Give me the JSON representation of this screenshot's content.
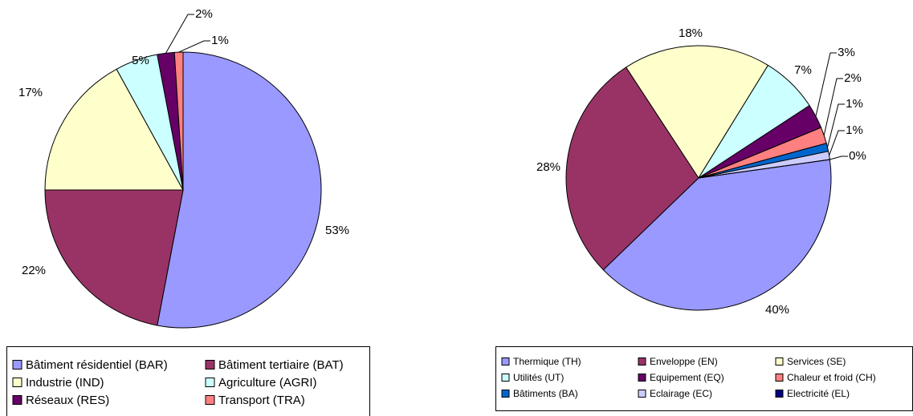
{
  "chart_data": [
    {
      "type": "pie",
      "categories": [
        "Bâtiment résidentiel (BAR)",
        "Bâtiment tertiaire (BAT)",
        "Industrie (IND)",
        "Agriculture (AGRI)",
        "Réseaux (RES)",
        "Transport (TRA)"
      ],
      "values": [
        53,
        22,
        17,
        5,
        2,
        1
      ],
      "value_labels": [
        "53%",
        "22%",
        "17%",
        "5%",
        "2%",
        "1%"
      ],
      "colors": [
        "#9999ff",
        "#993366",
        "#ffffcc",
        "#ccffff",
        "#660066",
        "#ff8080"
      ]
    },
    {
      "type": "pie",
      "categories": [
        "Thermique (TH)",
        "Enveloppe (EN)",
        "Services (SE)",
        "Utilités (UT)",
        "Equipement (EQ)",
        "Chaleur et froid (CH)",
        "Bâtiments (BA)",
        "Eclairage (EC)",
        "Electricité (EL)"
      ],
      "values": [
        40,
        28,
        18,
        7,
        3,
        2,
        1,
        1,
        0
      ],
      "value_labels": [
        "40%",
        "28%",
        "18%",
        "7%",
        "3%",
        "2%",
        "1%",
        "1%",
        "0%"
      ],
      "colors": [
        "#9999ff",
        "#993366",
        "#ffffcc",
        "#ccffff",
        "#660066",
        "#ff8080",
        "#0066cc",
        "#ccccff",
        "#000080"
      ]
    }
  ]
}
